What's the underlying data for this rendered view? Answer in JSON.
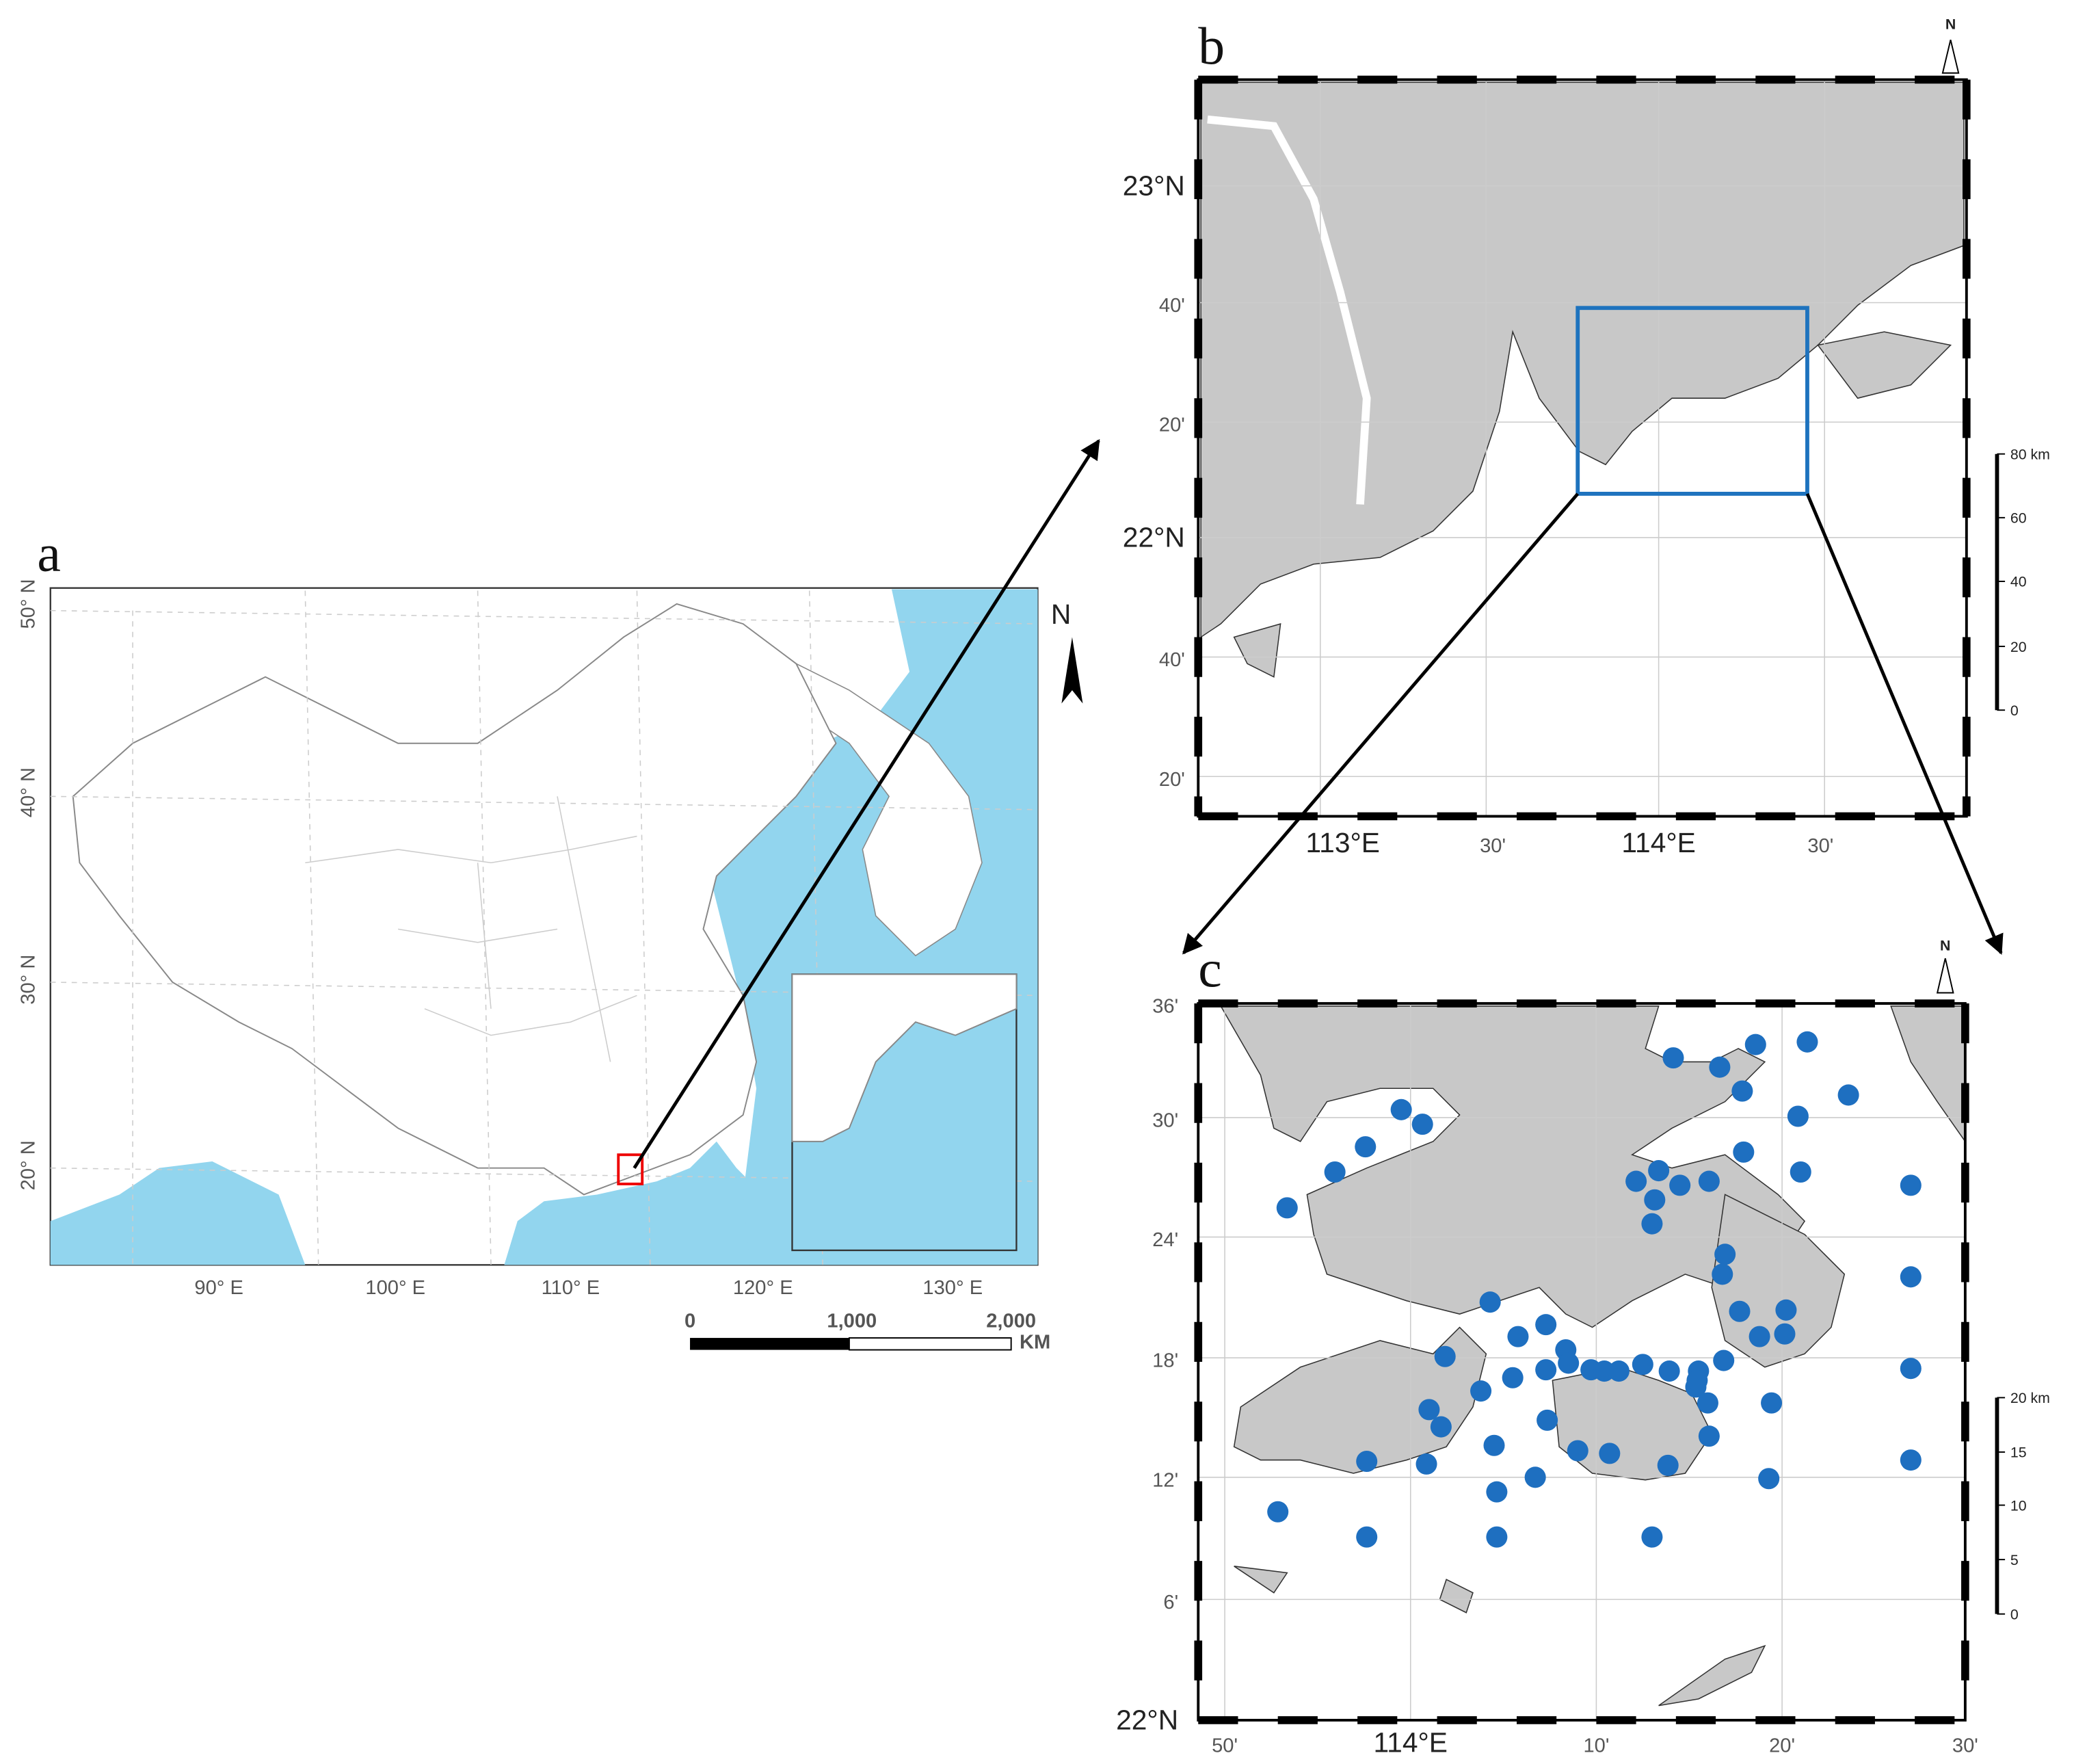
{
  "panels": [
    {
      "label": "a",
      "north": "N",
      "lat_labels": [
        "50° N",
        "40° N",
        "30° N",
        "20° N"
      ],
      "lon_labels": [
        "90° E",
        "100° E",
        "110° E",
        "120° E",
        "130° E"
      ],
      "scale_labels": [
        "0",
        "1,000",
        "2,000"
      ],
      "scale_unit": "KM"
    },
    {
      "label": "b",
      "north": "N",
      "lat_labels": [
        "23°N",
        "40'",
        "20'",
        "22°N",
        "40'",
        "20'"
      ],
      "lon_labels": [
        "113°E",
        "30'",
        "114°E",
        "30'"
      ],
      "scale_labels": [
        "80 km",
        "60",
        "40",
        "20",
        "0"
      ]
    },
    {
      "label": "c",
      "north": "N",
      "lat_labels": [
        "36'",
        "30'",
        "24'",
        "18'",
        "12'",
        "6'",
        "22°N"
      ],
      "lon_labels": [
        "50'",
        "114°E",
        "10'",
        "20'",
        "30'"
      ],
      "scale_labels": [
        "20 km",
        "15",
        "10",
        "5",
        "0"
      ]
    }
  ]
}
